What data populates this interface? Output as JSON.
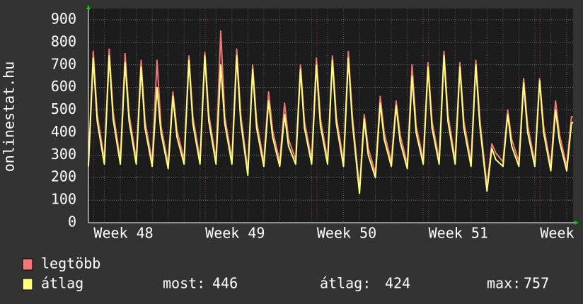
{
  "chart_data": {
    "type": "line",
    "y_label": "onlinestat.hu",
    "x": [
      0,
      0.3,
      0.55,
      1,
      1.3,
      1.55,
      2,
      2.3,
      2.55,
      3,
      3.3,
      3.55,
      4,
      4.3,
      4.55,
      5,
      5.3,
      5.55,
      6,
      6.3,
      6.55,
      7,
      7.3,
      7.55,
      8,
      8.3,
      8.55,
      9,
      9.3,
      9.55,
      10,
      10.3,
      10.55,
      11,
      11.3,
      11.55,
      12,
      12.3,
      12.55,
      13,
      13.3,
      13.55,
      14,
      14.3,
      14.55,
      15,
      15.3,
      15.55,
      16,
      16.3,
      16.55,
      17,
      17.3,
      17.55,
      18,
      18.3,
      18.55,
      19,
      19.3,
      19.55,
      20,
      20.3,
      20.55,
      21,
      21.3,
      21.55,
      22,
      22.3,
      22.55,
      23,
      23.3,
      23.55,
      24,
      24.3,
      24.55,
      25,
      25.3,
      25.55,
      26,
      26.3,
      26.55,
      27,
      27.3,
      27.55,
      28,
      28.3,
      28.55,
      29,
      29.3,
      29.55,
      30,
      30.3,
      30.4
    ],
    "xlim": [
      0,
      30.4
    ],
    "xticks": [
      {
        "value": 0.33,
        "label": "Week 48"
      },
      {
        "value": 7.33,
        "label": "Week 49"
      },
      {
        "value": 14.33,
        "label": "Week 50"
      },
      {
        "value": 21.33,
        "label": "Week 51"
      },
      {
        "value": 28.33,
        "label": "Week"
      }
    ],
    "ylim": [
      0,
      900
    ],
    "yticks": [
      0,
      100,
      200,
      300,
      400,
      500,
      600,
      700,
      800,
      900
    ],
    "grid": true,
    "series": [
      {
        "name": "legtöbb",
        "color": "#f07878",
        "values": [
          270,
          760,
          480,
          280,
          770,
          490,
          280,
          750,
          480,
          280,
          720,
          450,
          270,
          720,
          430,
          260,
          580,
          410,
          280,
          740,
          470,
          280,
          755,
          480,
          280,
          850,
          470,
          280,
          770,
          480,
          230,
          700,
          450,
          270,
          580,
          410,
          270,
          530,
          370,
          280,
          700,
          450,
          280,
          730,
          460,
          280,
          740,
          470,
          270,
          760,
          480,
          150,
          480,
          330,
          220,
          560,
          400,
          270,
          540,
          390,
          260,
          700,
          430,
          280,
          710,
          450,
          280,
          760,
          480,
          280,
          710,
          450,
          270,
          720,
          460,
          160,
          350,
          310,
          270,
          500,
          370,
          270,
          640,
          430,
          270,
          640,
          430,
          250,
          540,
          390,
          250,
          470,
          470
        ]
      },
      {
        "name": "átlag",
        "color": "#ffff80",
        "values": [
          250,
          730,
          450,
          260,
          740,
          460,
          260,
          710,
          450,
          260,
          690,
          420,
          250,
          600,
          400,
          240,
          560,
          380,
          260,
          720,
          440,
          260,
          740,
          450,
          260,
          700,
          440,
          260,
          740,
          450,
          210,
          680,
          420,
          250,
          540,
          380,
          250,
          480,
          340,
          260,
          680,
          420,
          260,
          700,
          430,
          260,
          720,
          440,
          250,
          730,
          450,
          130,
          460,
          300,
          200,
          530,
          370,
          250,
          520,
          360,
          240,
          650,
          400,
          260,
          690,
          420,
          260,
          740,
          450,
          260,
          690,
          420,
          250,
          700,
          430,
          140,
          330,
          280,
          250,
          480,
          340,
          250,
          620,
          400,
          250,
          630,
          400,
          230,
          500,
          360,
          230,
          440,
          446
        ]
      }
    ],
    "stats": [
      {
        "label": "most:",
        "value": 446
      },
      {
        "label": "átlag:",
        "value": 424
      },
      {
        "label": "max:",
        "value": 757
      }
    ]
  }
}
